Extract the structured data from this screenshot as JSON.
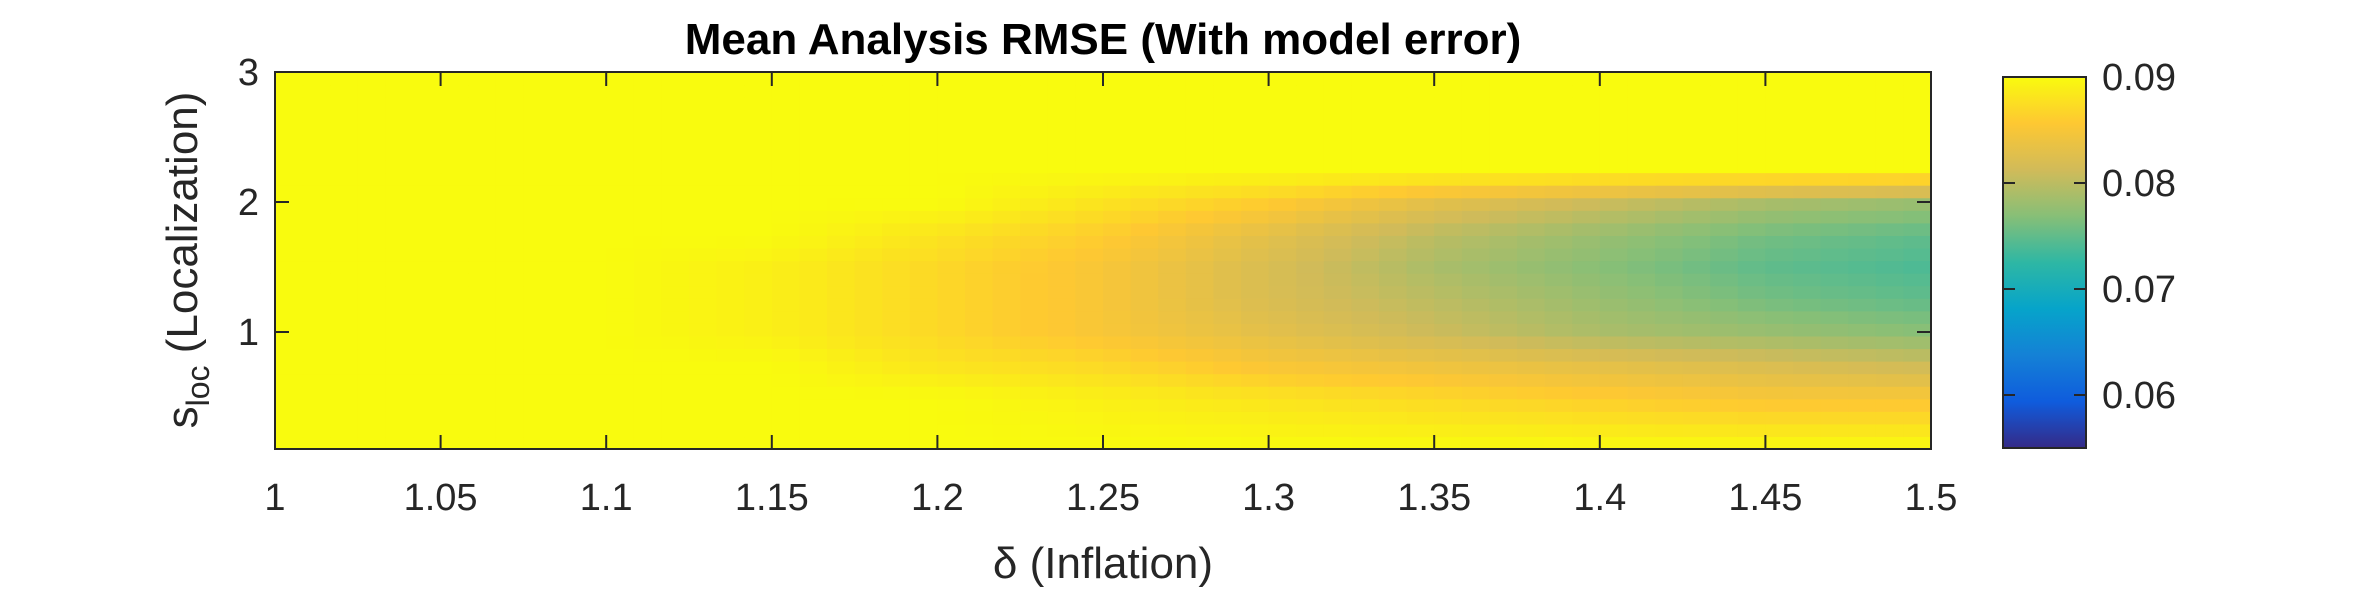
{
  "chart_data": {
    "type": "heatmap",
    "title": "Mean Analysis RMSE (With model error)",
    "xlabel": "δ (Inflation)",
    "ylabel": "(Localization)",
    "ylabel_symbol": "s",
    "ylabel_subscript": "loc",
    "xlim": [
      1,
      1.5
    ],
    "ylim": [
      0.1,
      3
    ],
    "xticks": [
      1,
      1.05,
      1.1,
      1.15,
      1.2,
      1.25,
      1.3,
      1.35,
      1.4,
      1.45,
      1.5
    ],
    "xtick_labels": [
      "1",
      "1.05",
      "1.1",
      "1.15",
      "1.2",
      "1.25",
      "1.3",
      "1.35",
      "1.4",
      "1.45",
      "1.5"
    ],
    "yticks": [
      1,
      2,
      3
    ],
    "ytick_labels": [
      "1",
      "2",
      "3"
    ],
    "colorbar": {
      "range": [
        0.055,
        0.09
      ],
      "ticks": [
        0.06,
        0.07,
        0.08,
        0.09
      ],
      "tick_labels": [
        "0.06",
        "0.07",
        "0.08",
        "0.09"
      ],
      "colormap": "parula",
      "stops": [
        "#352a87",
        "#0f5cdd",
        "#1481d6",
        "#06a4ca",
        "#2eb7a4",
        "#87bf77",
        "#d1bb59",
        "#fec832",
        "#f9fb0e"
      ]
    },
    "x": [
      1.0,
      1.05,
      1.1,
      1.15,
      1.2,
      1.25,
      1.3,
      1.35,
      1.4,
      1.45,
      1.5
    ],
    "y": [
      0.1,
      0.5,
      0.75,
      1.0,
      1.25,
      1.5,
      1.75,
      2.0,
      2.25,
      2.5,
      3.0
    ],
    "z": [
      [
        0.09,
        0.09,
        0.09,
        0.09,
        0.09,
        0.09,
        0.09,
        0.09,
        0.09,
        0.09,
        0.09
      ],
      [
        0.09,
        0.09,
        0.09,
        0.09,
        0.09,
        0.089,
        0.088,
        0.087,
        0.086,
        0.085,
        0.085
      ],
      [
        0.09,
        0.09,
        0.09,
        0.09,
        0.088,
        0.087,
        0.085,
        0.084,
        0.083,
        0.082,
        0.081
      ],
      [
        0.09,
        0.09,
        0.09,
        0.089,
        0.087,
        0.085,
        0.083,
        0.081,
        0.079,
        0.078,
        0.077
      ],
      [
        0.09,
        0.09,
        0.09,
        0.089,
        0.087,
        0.085,
        0.082,
        0.08,
        0.078,
        0.076,
        0.075
      ],
      [
        0.09,
        0.09,
        0.09,
        0.089,
        0.087,
        0.085,
        0.082,
        0.079,
        0.077,
        0.075,
        0.074
      ],
      [
        0.09,
        0.09,
        0.09,
        0.09,
        0.088,
        0.086,
        0.083,
        0.08,
        0.078,
        0.076,
        0.075
      ],
      [
        0.09,
        0.09,
        0.09,
        0.09,
        0.09,
        0.088,
        0.086,
        0.083,
        0.081,
        0.079,
        0.078
      ],
      [
        0.09,
        0.09,
        0.09,
        0.09,
        0.09,
        0.09,
        0.09,
        0.09,
        0.09,
        0.09,
        0.09
      ],
      [
        0.09,
        0.09,
        0.09,
        0.09,
        0.09,
        0.09,
        0.09,
        0.09,
        0.09,
        0.09,
        0.09
      ],
      [
        0.09,
        0.09,
        0.09,
        0.09,
        0.09,
        0.09,
        0.09,
        0.09,
        0.09,
        0.09,
        0.09
      ]
    ],
    "grid": false,
    "legend": "none"
  }
}
